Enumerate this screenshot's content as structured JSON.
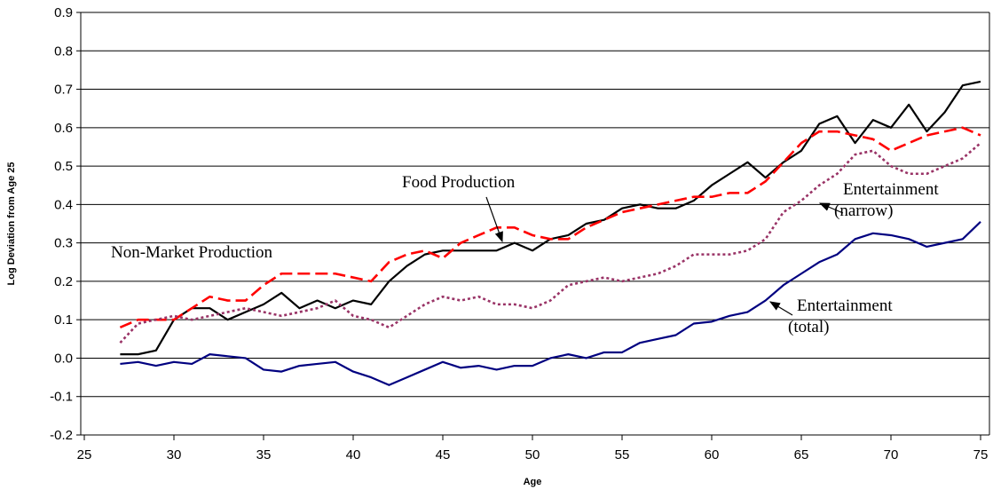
{
  "chart_data": {
    "type": "line",
    "x_label": "Age",
    "y_label": "Log Deviation from Age 25",
    "x": [
      27,
      28,
      29,
      30,
      31,
      32,
      33,
      34,
      35,
      36,
      37,
      38,
      39,
      40,
      41,
      42,
      43,
      44,
      45,
      46,
      47,
      48,
      49,
      50,
      51,
      52,
      53,
      54,
      55,
      56,
      57,
      58,
      59,
      60,
      61,
      62,
      63,
      64,
      65,
      66,
      67,
      68,
      69,
      70,
      71,
      72,
      73,
      74,
      75
    ],
    "xlim": [
      25,
      75
    ],
    "xticks": [
      25,
      30,
      35,
      40,
      45,
      50,
      55,
      60,
      65,
      70,
      75
    ],
    "ylim": [
      -0.2,
      0.9
    ],
    "yticks": [
      -0.2,
      -0.1,
      {
        "value": 0,
        "label": "0.0"
      },
      0.1,
      0.2,
      0.3,
      0.4,
      0.5,
      0.6,
      0.7,
      0.8,
      0.9
    ],
    "grid": true,
    "series": [
      {
        "name": "Non-Market Production",
        "color": "#000000",
        "dash": "solid",
        "values": [
          0.01,
          0.01,
          0.02,
          0.1,
          0.13,
          0.13,
          0.1,
          0.12,
          0.14,
          0.17,
          0.13,
          0.15,
          0.13,
          0.15,
          0.14,
          0.2,
          0.24,
          0.27,
          0.28,
          0.28,
          0.28,
          0.28,
          0.3,
          0.28,
          0.31,
          0.32,
          0.35,
          0.36,
          0.39,
          0.4,
          0.39,
          0.39,
          0.41,
          0.45,
          0.48,
          0.51,
          0.47,
          0.51,
          0.54,
          0.61,
          0.63,
          0.56,
          0.62,
          0.6,
          0.66,
          0.59,
          0.64,
          0.71,
          0.72
        ]
      },
      {
        "name": "Food Production",
        "color": "#ff0000",
        "dash": "dashed",
        "values": [
          0.08,
          0.1,
          0.1,
          0.1,
          0.13,
          0.16,
          0.15,
          0.15,
          0.19,
          0.22,
          0.22,
          0.22,
          0.22,
          0.21,
          0.2,
          0.25,
          0.27,
          0.28,
          0.26,
          0.3,
          0.32,
          0.34,
          0.34,
          0.32,
          0.31,
          0.31,
          0.34,
          0.36,
          0.38,
          0.39,
          0.4,
          0.41,
          0.42,
          0.42,
          0.43,
          0.43,
          0.46,
          0.51,
          0.56,
          0.59,
          0.59,
          0.58,
          0.57,
          0.54,
          0.56,
          0.58,
          0.59,
          0.6,
          0.58
        ]
      },
      {
        "name": "Entertainment (narrow)",
        "color": "#993366",
        "dash": "dotted",
        "values": [
          0.04,
          0.09,
          0.1,
          0.11,
          0.1,
          0.11,
          0.12,
          0.13,
          0.12,
          0.11,
          0.12,
          0.13,
          0.15,
          0.11,
          0.1,
          0.08,
          0.11,
          0.14,
          0.16,
          0.15,
          0.16,
          0.14,
          0.14,
          0.13,
          0.15,
          0.19,
          0.2,
          0.21,
          0.2,
          0.21,
          0.22,
          0.24,
          0.27,
          0.27,
          0.27,
          0.28,
          0.31,
          0.38,
          0.41,
          0.45,
          0.48,
          0.53,
          0.54,
          0.5,
          0.48,
          0.48,
          0.5,
          0.52,
          0.56
        ]
      },
      {
        "name": "Entertainment (total)",
        "color": "#000080",
        "dash": "solid",
        "values": [
          -0.015,
          -0.01,
          -0.02,
          -0.01,
          -0.015,
          0.01,
          0.005,
          0,
          -0.03,
          -0.035,
          -0.02,
          -0.015,
          -0.01,
          -0.035,
          -0.05,
          -0.07,
          -0.05,
          -0.03,
          -0.01,
          -0.025,
          -0.02,
          -0.03,
          -0.02,
          -0.02,
          0,
          0.01,
          0,
          0.015,
          0.015,
          0.04,
          0.05,
          0.06,
          0.09,
          0.095,
          0.11,
          0.12,
          0.15,
          0.19,
          0.22,
          0.25,
          0.27,
          0.31,
          0.325,
          0.32,
          0.31,
          0.29,
          0.3,
          0.31,
          0.355
        ]
      }
    ],
    "annotations": [
      {
        "lines": [
          "Non-Market Production"
        ]
      },
      {
        "lines": [
          "Food Production"
        ]
      },
      {
        "lines": [
          "Entertainment",
          "(narrow)"
        ]
      },
      {
        "lines": [
          "Entertainment",
          "(total)"
        ]
      }
    ]
  }
}
